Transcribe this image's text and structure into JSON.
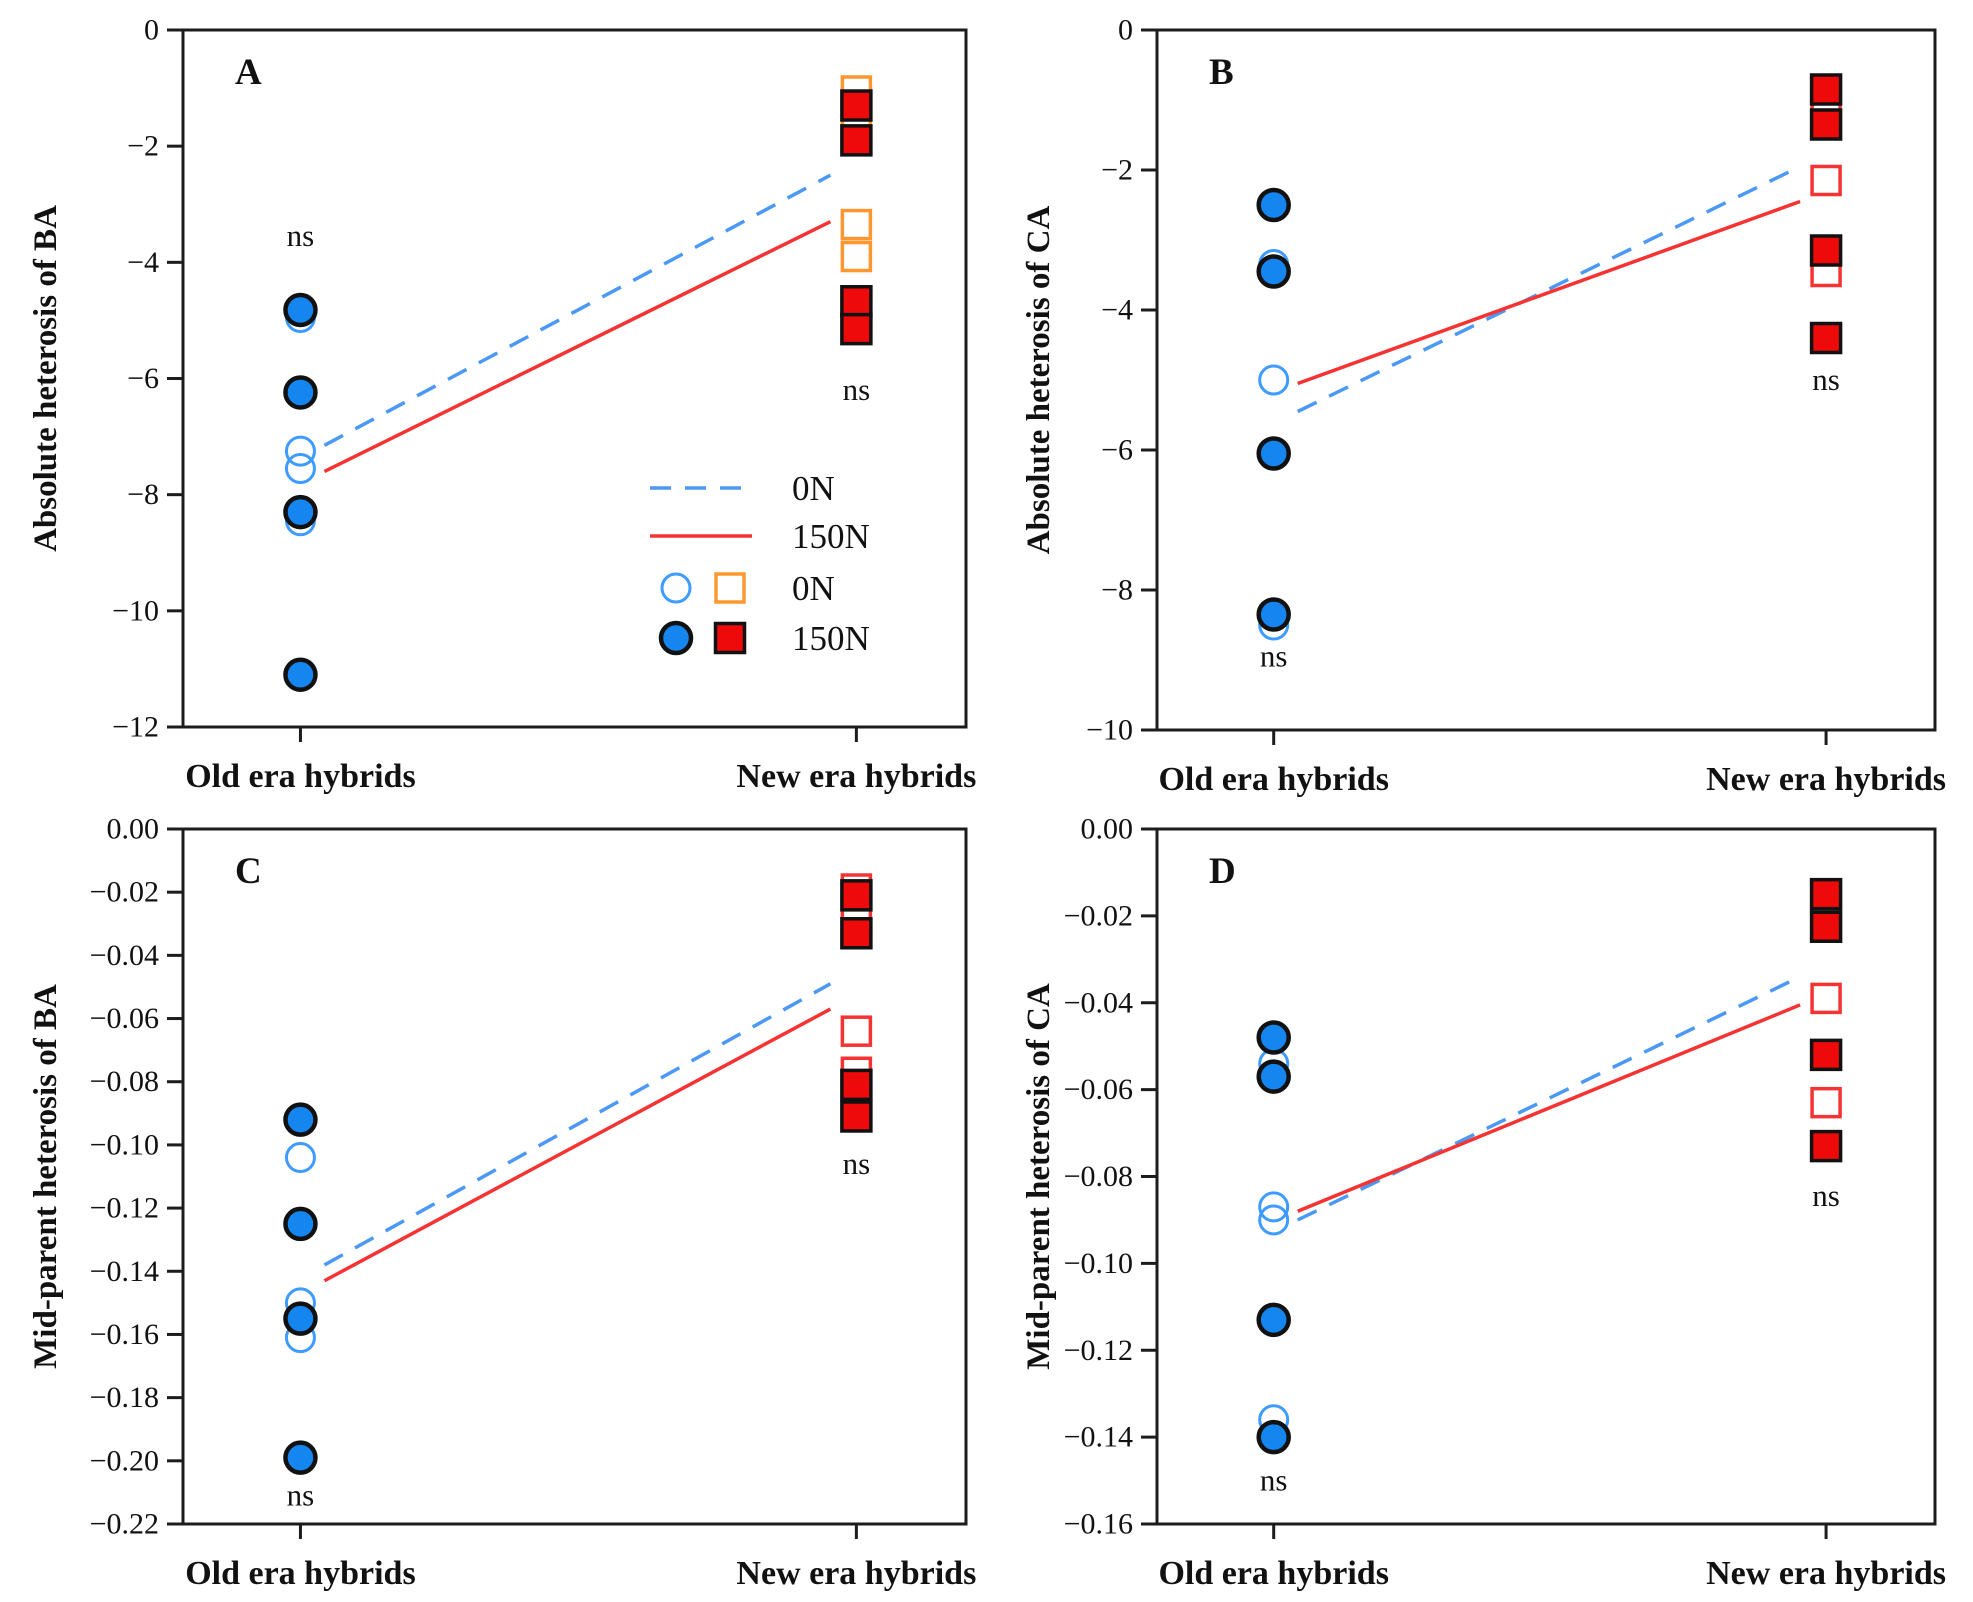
{
  "figure": {
    "background": "#ffffff"
  },
  "colors": {
    "blue_fill": "#1585f0",
    "blue_stroke": "#3e9bff",
    "red_fill": "#ee0a0a",
    "red_stroke": "#f63333",
    "orange_stroke": "#ff9730",
    "line_blue": "#4b99f5",
    "line_red": "#f63333",
    "axis": "#1c1c1c",
    "marker_edge": "#111111"
  },
  "legend": {
    "entries": [
      {
        "type": "line-dashed",
        "label": "0N"
      },
      {
        "type": "line-solid",
        "label": "150N"
      },
      {
        "type": "symbols-open",
        "label": "0N"
      },
      {
        "type": "symbols-filled",
        "label": "150N"
      }
    ]
  },
  "chart_data": [
    {
      "type": "scatter",
      "id": "A",
      "ylabel": "Absolute heterosis of BA",
      "ylim": [
        -12,
        0
      ],
      "yticks": [
        0,
        -2,
        -4,
        -6,
        -8,
        -10,
        -12
      ],
      "ytick_decimals": 0,
      "categories": [
        "Old era hybrids",
        "New era hybrids"
      ],
      "open_square_color": "orange",
      "points": {
        "old": {
          "open_circles": [
            -4.95,
            -7.25,
            -7.55,
            -8.45
          ],
          "filled_circles": [
            -4.82,
            -6.24,
            -8.3,
            -11.1
          ]
        },
        "new": {
          "open_squares": [
            -1.05,
            -1.6,
            -3.35,
            -3.9
          ],
          "filled_squares": [
            -1.3,
            -1.9,
            -4.67,
            -5.15
          ]
        }
      },
      "lines": [
        {
          "name": "0N",
          "style": "dashed",
          "old": -7.15,
          "new": -2.5
        },
        {
          "name": "150N",
          "style": "solid",
          "old": -7.6,
          "new": -3.3
        }
      ],
      "annotations": [
        {
          "text": "ns",
          "at": "old",
          "value": -3.55
        },
        {
          "text": "ns",
          "at": "new",
          "value": -6.2
        }
      ],
      "has_legend": true
    },
    {
      "type": "scatter",
      "id": "B",
      "ylabel": "Absolute heterosis of CA",
      "ylim": [
        -10,
        0
      ],
      "yticks": [
        0,
        -2,
        -4,
        -6,
        -8,
        -10
      ],
      "ytick_decimals": 0,
      "categories": [
        "Old era hybrids",
        "New era hybrids"
      ],
      "open_square_color": "red",
      "points": {
        "old": {
          "open_circles": [
            -3.35,
            -5.0,
            -8.5
          ],
          "filled_circles": [
            -2.5,
            -3.45,
            -6.05,
            -8.35
          ]
        },
        "new": {
          "open_squares": [
            -1.1,
            -2.15,
            -3.45
          ],
          "filled_squares": [
            -0.85,
            -1.35,
            -3.15,
            -4.4
          ]
        }
      },
      "lines": [
        {
          "name": "0N",
          "style": "dashed",
          "old": -5.45,
          "new": -1.95
        },
        {
          "name": "150N",
          "style": "solid",
          "old": -5.05,
          "new": -2.45
        }
      ],
      "annotations": [
        {
          "text": "ns",
          "at": "old",
          "value": -8.95
        },
        {
          "text": "ns",
          "at": "new",
          "value": -5.0
        }
      ],
      "has_legend": false
    },
    {
      "type": "scatter",
      "id": "C",
      "ylabel": "Mid-parent heterosis of BA",
      "ylim": [
        -0.22,
        0
      ],
      "yticks": [
        0,
        -0.02,
        -0.04,
        -0.06,
        -0.08,
        -0.1,
        -0.12,
        -0.14,
        -0.16,
        -0.18,
        -0.2,
        -0.22
      ],
      "ytick_decimals": 2,
      "categories": [
        "Old era hybrids",
        "New era hybrids"
      ],
      "open_square_color": "red",
      "points": {
        "old": {
          "open_circles": [
            -0.104,
            -0.15,
            -0.161
          ],
          "filled_circles": [
            -0.092,
            -0.125,
            -0.155,
            -0.199
          ]
        },
        "new": {
          "open_squares": [
            -0.019,
            -0.03,
            -0.064,
            -0.077
          ],
          "filled_squares": [
            -0.021,
            -0.033,
            -0.081,
            -0.091
          ]
        }
      },
      "lines": [
        {
          "name": "0N",
          "style": "dashed",
          "old": -0.138,
          "new": -0.049
        },
        {
          "name": "150N",
          "style": "solid",
          "old": -0.143,
          "new": -0.057
        }
      ],
      "annotations": [
        {
          "text": "ns",
          "at": "old",
          "value": -0.211
        },
        {
          "text": "ns",
          "at": "new",
          "value": -0.106
        }
      ],
      "has_legend": false
    },
    {
      "type": "scatter",
      "id": "D",
      "ylabel": "Mid-parent heterosis of CA",
      "ylim": [
        -0.16,
        0
      ],
      "yticks": [
        0,
        -0.02,
        -0.04,
        -0.06,
        -0.08,
        -0.1,
        -0.12,
        -0.14,
        -0.16
      ],
      "ytick_decimals": 2,
      "categories": [
        "Old era hybrids",
        "New era hybrids"
      ],
      "open_square_color": "red",
      "points": {
        "old": {
          "open_circles": [
            -0.054,
            -0.087,
            -0.09,
            -0.136
          ],
          "filled_circles": [
            -0.048,
            -0.057,
            -0.113,
            -0.14
          ]
        },
        "new": {
          "open_squares": [
            -0.0185,
            -0.039,
            -0.063
          ],
          "filled_squares": [
            -0.015,
            -0.0225,
            -0.052,
            -0.073
          ]
        }
      },
      "lines": [
        {
          "name": "0N",
          "style": "dashed",
          "old": -0.09,
          "new": -0.034
        },
        {
          "name": "150N",
          "style": "solid",
          "old": -0.088,
          "new": -0.0405
        }
      ],
      "annotations": [
        {
          "text": "ns",
          "at": "old",
          "value": -0.15
        },
        {
          "text": "ns",
          "at": "new",
          "value": -0.0845
        }
      ],
      "has_legend": false
    }
  ]
}
